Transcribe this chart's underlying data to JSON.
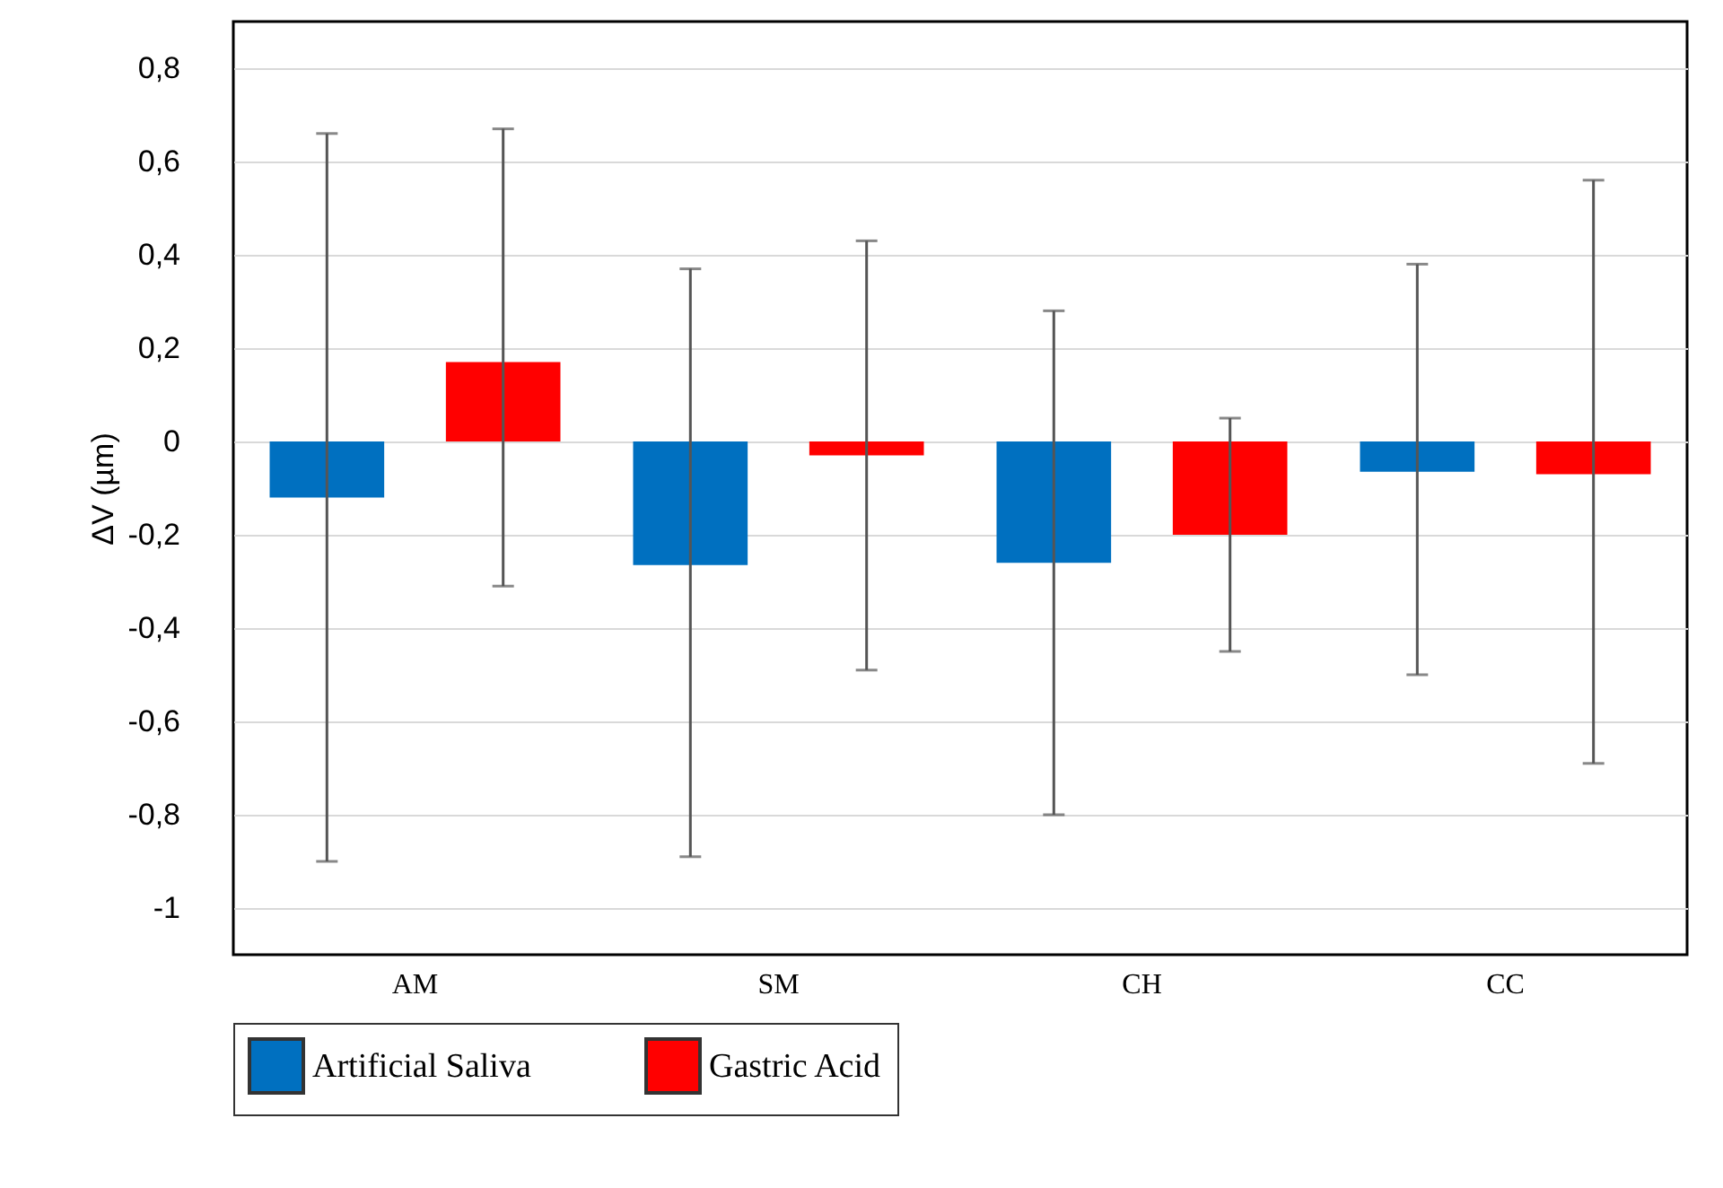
{
  "chart_data": {
    "type": "bar",
    "ylabel": "ΔV (µm)",
    "categories": [
      "AM",
      "SM",
      "CH",
      "CC"
    ],
    "series": [
      {
        "name": "Artificial Saliva",
        "color": "#0070c0",
        "values": [
          -0.12,
          -0.265,
          -0.26,
          -0.065
        ],
        "errors": [
          [
            -0.9,
            0.66
          ],
          [
            -0.89,
            0.37
          ],
          [
            -0.8,
            0.28
          ],
          [
            -0.5,
            0.38
          ]
        ]
      },
      {
        "name": "Gastric Acid",
        "color": "#ff0000",
        "values": [
          0.17,
          -0.03,
          -0.2,
          -0.07
        ],
        "errors": [
          [
            -0.31,
            0.67
          ],
          [
            -0.49,
            0.43
          ],
          [
            -0.45,
            0.05
          ],
          [
            -0.69,
            0.56
          ]
        ]
      }
    ],
    "ylim": [
      -1.1,
      0.9
    ],
    "yticks": [
      {
        "value": -1,
        "label": "-1"
      },
      {
        "value": -0.8,
        "label": "-0,8"
      },
      {
        "value": -0.6,
        "label": "-0,6"
      },
      {
        "value": -0.4,
        "label": "-0,4"
      },
      {
        "value": -0.2,
        "label": "-0,2"
      },
      {
        "value": 0,
        "label": "0"
      },
      {
        "value": 0.2,
        "label": "0,2"
      },
      {
        "value": 0.4,
        "label": "0,4"
      },
      {
        "value": 0.6,
        "label": "0,6"
      },
      {
        "value": 0.8,
        "label": "0,8"
      }
    ],
    "grid": "y",
    "legend": "bottom"
  }
}
